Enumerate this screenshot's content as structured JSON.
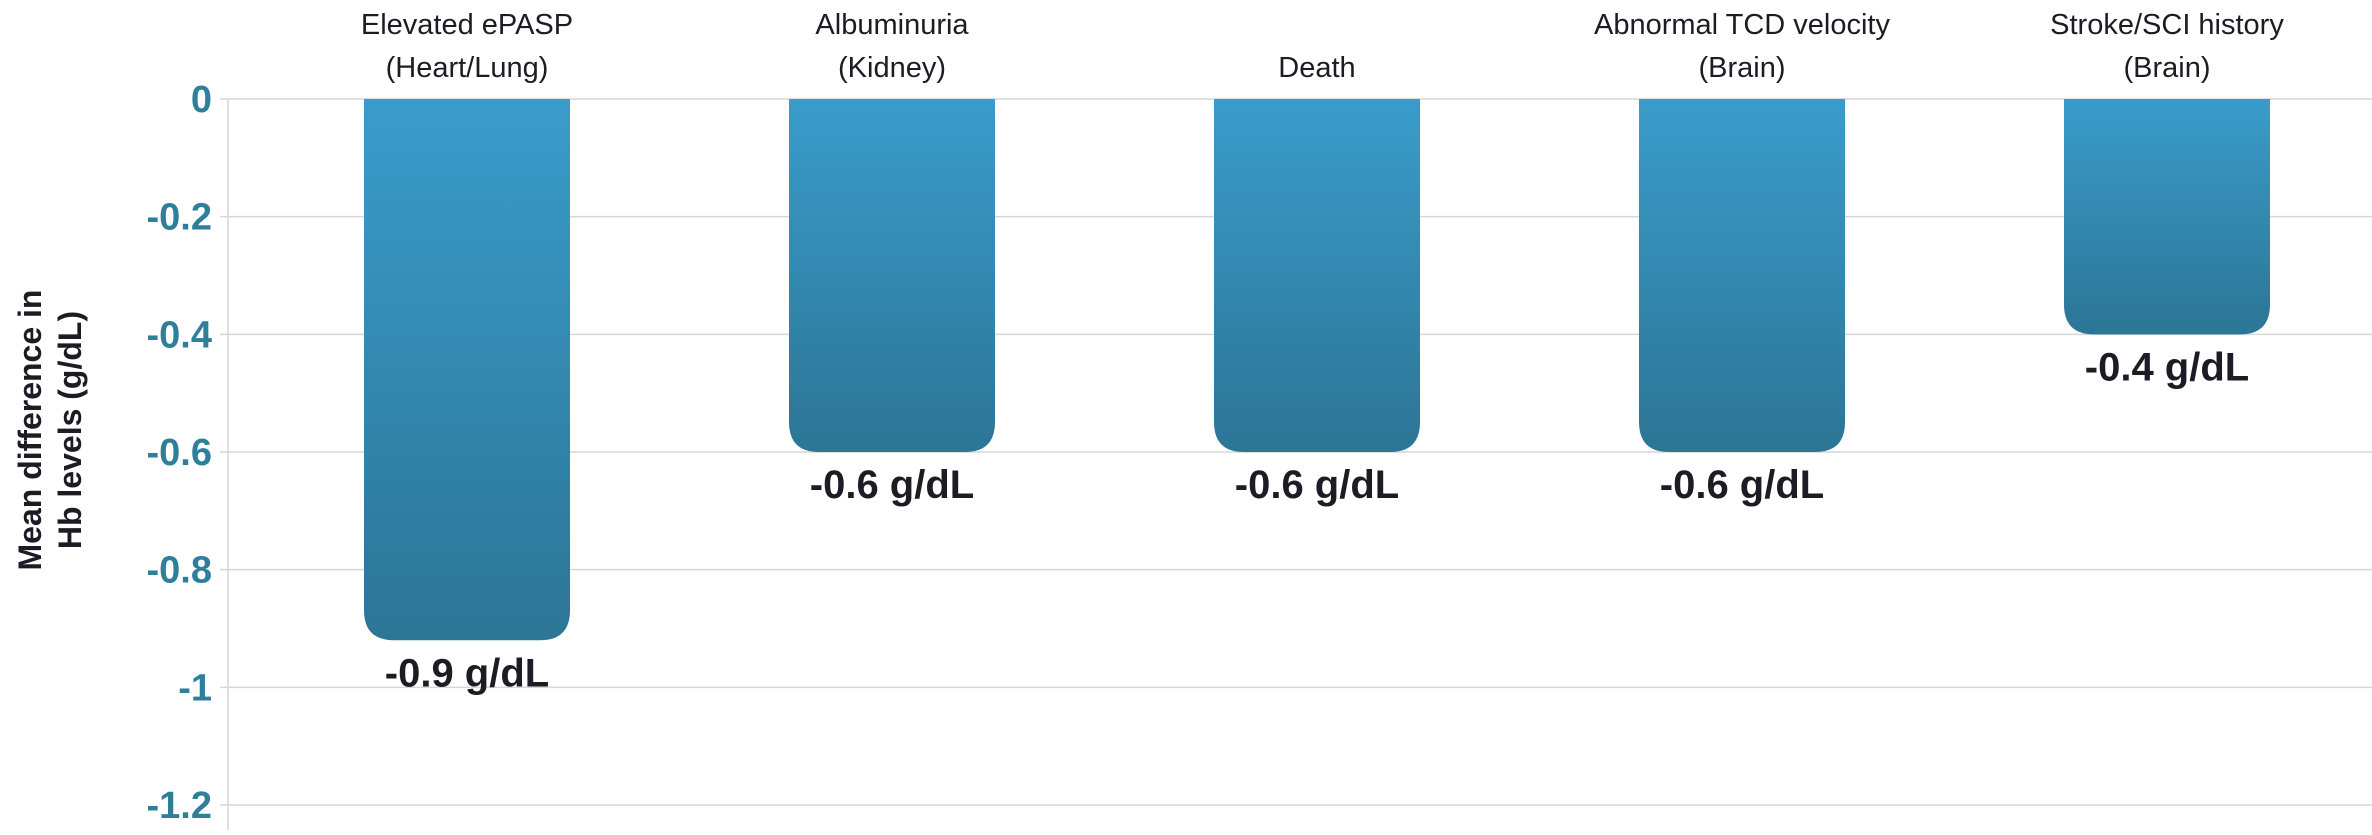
{
  "chart_data": {
    "type": "bar",
    "title": "",
    "xlabel": "",
    "ylabel": "Mean difference in Hb levels (g/dL)",
    "ylabel_lines": [
      "Mean difference in",
      "Hb levels (g/dL)"
    ],
    "ylim": [
      -1.2,
      0
    ],
    "yticks": [
      0,
      -0.2,
      -0.4,
      -0.6,
      -0.8,
      -1,
      -1.2
    ],
    "ytick_labels": [
      "0",
      "-0.2",
      "-0.4",
      "-0.6",
      "-0.8",
      "-1",
      "-1.2"
    ],
    "grid": true,
    "categories": [
      [
        "Elevated ePASP",
        "(Heart/Lung)"
      ],
      [
        "Albuminuria",
        "(Kidney)"
      ],
      [
        "Death"
      ],
      [
        "Abnormal TCD velocity",
        "(Brain)"
      ],
      [
        "Stroke/SCI history",
        "(Brain)"
      ]
    ],
    "values": [
      -0.92,
      -0.6,
      -0.6,
      -0.6,
      -0.4
    ],
    "value_labels": [
      "-0.9 g/dL",
      "-0.6 g/dL",
      "-0.6 g/dL",
      "-0.6 g/dL",
      "-0.4 g/dL"
    ],
    "colors": {
      "bar_top": "#3a9ccb",
      "bar_bottom": "#2c7595",
      "tick_label": "#2f7f9a",
      "text": "#1c1c24",
      "grid": "#d4d6d9"
    }
  }
}
